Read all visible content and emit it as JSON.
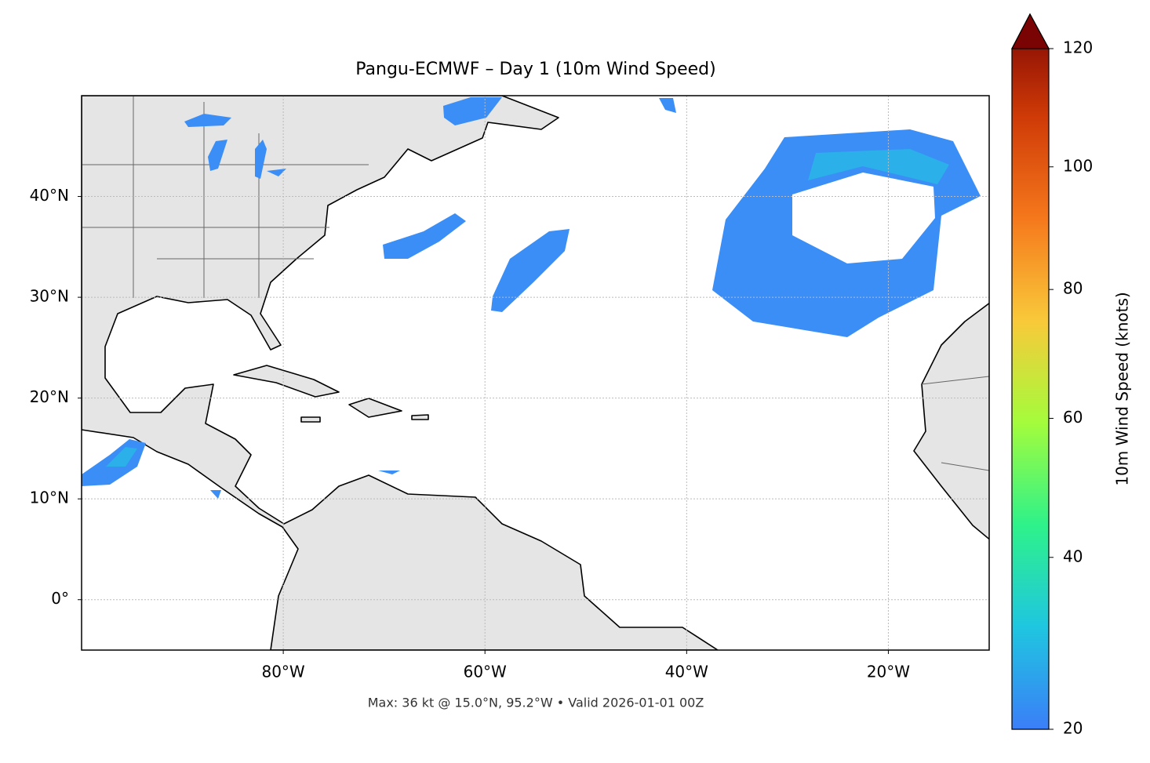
{
  "chart_data": {
    "type": "map",
    "title": "Pangu-ECMWF – Day 1 (10m Wind Speed)",
    "annotation": "Max: 36 kt @ 15.0°N, 95.2°W • Valid 2026-01-01 00Z",
    "xlim": [
      -100,
      -10
    ],
    "ylim": [
      -5,
      50
    ],
    "xticks": [
      {
        "value": -80,
        "label": "80°W"
      },
      {
        "value": -60,
        "label": "60°W"
      },
      {
        "value": -40,
        "label": "40°W"
      },
      {
        "value": -20,
        "label": "20°W"
      }
    ],
    "yticks": [
      {
        "value": 0,
        "label": "0°"
      },
      {
        "value": 10,
        "label": "10°N"
      },
      {
        "value": 20,
        "label": "20°N"
      },
      {
        "value": 30,
        "label": "30°N"
      },
      {
        "value": 40,
        "label": "40°N"
      }
    ],
    "grid": true,
    "colorbar": {
      "label": "10m Wind Speed (knots)",
      "lim": [
        20,
        120
      ],
      "ticks": [
        20,
        40,
        60,
        80,
        100,
        120
      ],
      "norm": "power",
      "gamma": 0.855,
      "colors": [
        "#3b7ef8",
        "#1fc6e0",
        "#2ef28a",
        "#a4fc3c",
        "#f9c93a",
        "#f5781c",
        "#cf3a07",
        "#7a0403"
      ]
    }
  }
}
